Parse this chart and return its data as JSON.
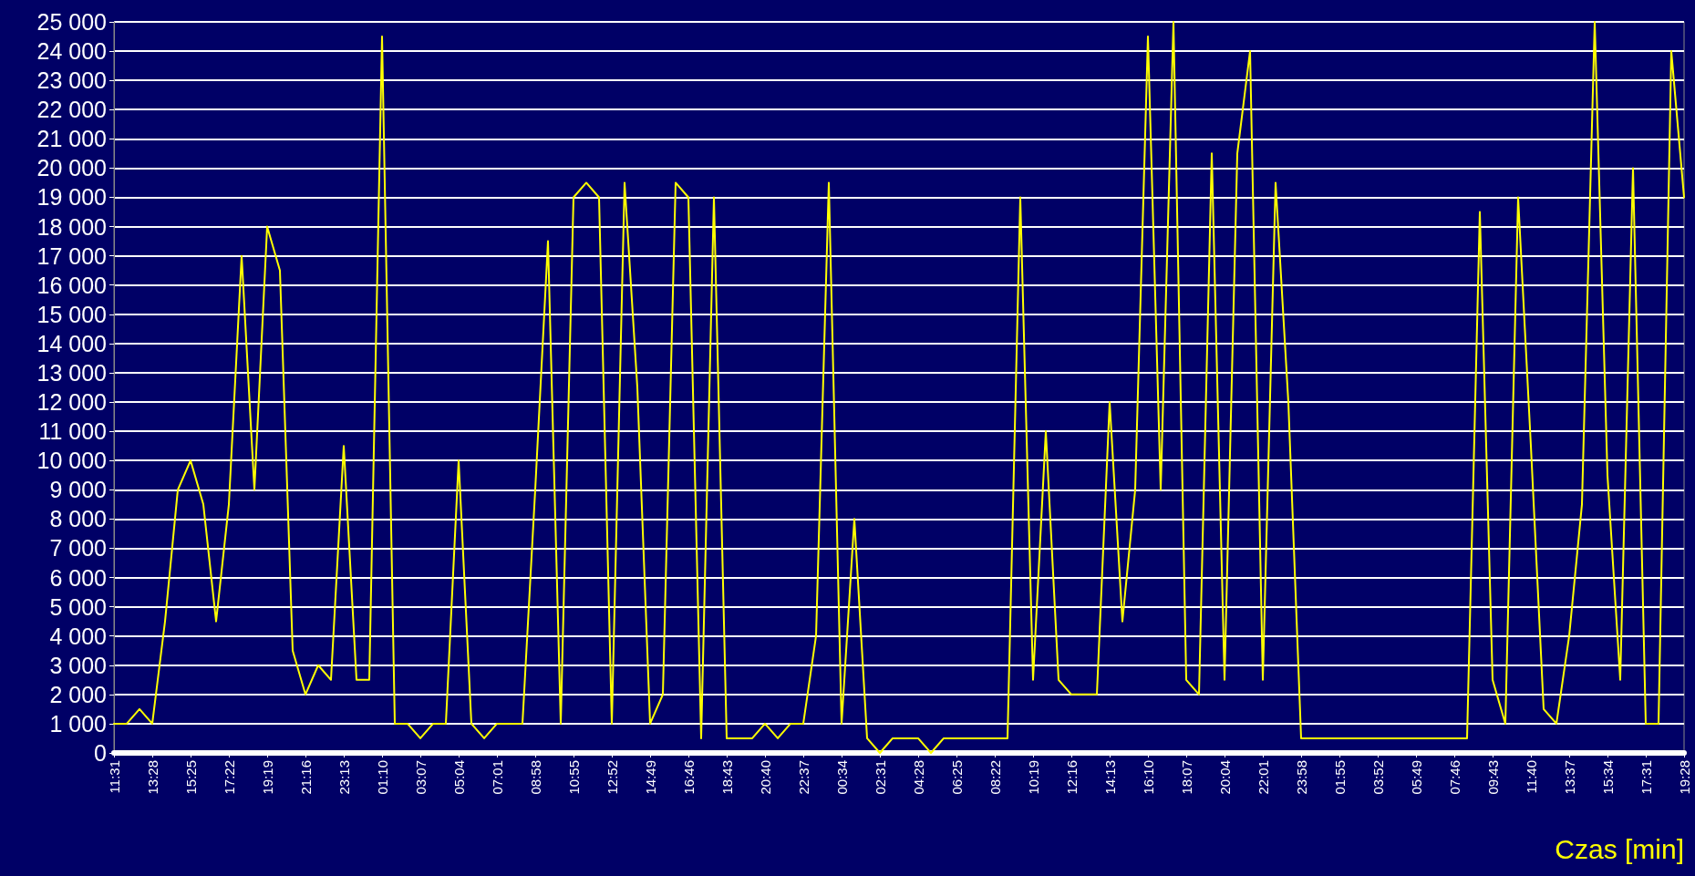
{
  "chart_data": {
    "type": "line",
    "xlabel": "Czas [min]",
    "categories": [
      "11:31",
      null,
      null,
      "13:28",
      null,
      null,
      "15:25",
      null,
      null,
      "17:22",
      null,
      null,
      "19:19",
      null,
      null,
      "21:16",
      null,
      null,
      "23:13",
      null,
      null,
      "01:10",
      null,
      null,
      "03:07",
      null,
      null,
      "05:04",
      null,
      null,
      "07:01",
      null,
      null,
      "08:58",
      null,
      null,
      "10:55",
      null,
      null,
      "12:52",
      null,
      null,
      "14:49",
      null,
      null,
      "16:46",
      null,
      null,
      "18:43",
      null,
      null,
      "20:40",
      null,
      null,
      "22:37",
      null,
      null,
      "00:34",
      null,
      null,
      "02:31",
      null,
      null,
      "04:28",
      null,
      null,
      "06:25",
      null,
      null,
      "08:22",
      null,
      null,
      "10:19",
      null,
      null,
      "12:16",
      null,
      null,
      "14:13",
      null,
      null,
      "16:10",
      null,
      null,
      "18:07",
      null,
      null,
      "20:04",
      null,
      null,
      "22:01",
      null,
      null,
      "23:58",
      null,
      null,
      "01:55",
      null,
      null,
      "03:52",
      null,
      null,
      "05:49",
      null,
      null,
      "07:46",
      null,
      null,
      "09:43",
      null,
      null,
      "11:40",
      null,
      null,
      "13:37",
      null,
      null,
      "15:34",
      null,
      null,
      "17:31",
      null,
      null,
      "19:28"
    ],
    "series": [
      {
        "color": "#ffff00",
        "values": [
          1000,
          1000,
          1500,
          1000,
          4500,
          9000,
          10000,
          8500,
          4500,
          8500,
          17000,
          9000,
          18000,
          16500,
          3500,
          2000,
          3000,
          2500,
          10500,
          2500,
          2500,
          24500,
          1000,
          1000,
          500,
          1000,
          1000,
          10000,
          1000,
          500,
          1000,
          1000,
          1000,
          9000,
          17500,
          1000,
          19000,
          19500,
          19000,
          1000,
          19500,
          12500,
          1000,
          2000,
          19500,
          19000,
          500,
          19000,
          500,
          500,
          500,
          1000,
          500,
          1000,
          1000,
          4000,
          19500,
          1000,
          8000,
          500,
          0,
          500,
          500,
          500,
          0,
          500,
          500,
          500,
          500,
          500,
          500,
          19000,
          2500,
          11000,
          2500,
          2000,
          2000,
          2000,
          12000,
          4500,
          9000,
          24500,
          9000,
          25000,
          2500,
          2000,
          20500,
          2500,
          20500,
          24000,
          2500,
          19500,
          12000,
          500,
          500,
          500,
          500,
          500,
          500,
          500,
          500,
          500,
          500,
          500,
          500,
          500,
          500,
          18500,
          2500,
          1000,
          19000,
          10500,
          1500,
          1000,
          4000,
          8500,
          25000,
          9500,
          2500,
          20000,
          1000,
          1000,
          24000,
          19000
        ]
      }
    ],
    "ylim": [
      0,
      25000
    ],
    "yticks": [
      {
        "value": 0,
        "label": "0"
      },
      {
        "value": 1000,
        "label": "1 000"
      },
      {
        "value": 2000,
        "label": "2 000"
      },
      {
        "value": 3000,
        "label": "3 000"
      },
      {
        "value": 4000,
        "label": "4 000"
      },
      {
        "value": 5000,
        "label": "5 000"
      },
      {
        "value": 6000,
        "label": "6 000"
      },
      {
        "value": 7000,
        "label": "7 000"
      },
      {
        "value": 8000,
        "label": "8 000"
      },
      {
        "value": 9000,
        "label": "9 000"
      },
      {
        "value": 10000,
        "label": "10 000"
      },
      {
        "value": 11000,
        "label": "11 000"
      },
      {
        "value": 12000,
        "label": "12 000"
      },
      {
        "value": 13000,
        "label": "13 000"
      },
      {
        "value": 14000,
        "label": "14 000"
      },
      {
        "value": 15000,
        "label": "15 000"
      },
      {
        "value": 16000,
        "label": "16 000"
      },
      {
        "value": 17000,
        "label": "17 000"
      },
      {
        "value": 18000,
        "label": "18 000"
      },
      {
        "value": 19000,
        "label": "19 000"
      },
      {
        "value": 20000,
        "label": "20 000"
      },
      {
        "value": 21000,
        "label": "21 000"
      },
      {
        "value": 22000,
        "label": "22 000"
      },
      {
        "value": 23000,
        "label": "23 000"
      },
      {
        "value": 24000,
        "label": "24 000"
      },
      {
        "value": 25000,
        "label": "25 000"
      }
    ],
    "grid": "y",
    "marker": "none",
    "line_style": "solid"
  }
}
